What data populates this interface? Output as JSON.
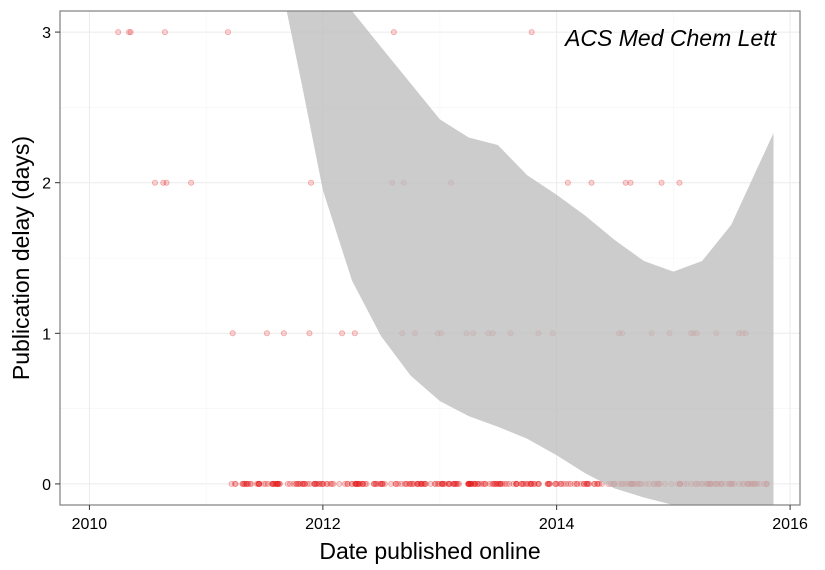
{
  "chart_data": {
    "type": "scatter",
    "title": "",
    "annotation": "ACS Med Chem Lett",
    "xlabel": "Date published online",
    "ylabel": "Publication delay (days)",
    "x_ticks": [
      "2010",
      "2012",
      "2014",
      "2016"
    ],
    "y_ticks": [
      "0",
      "1",
      "2",
      "3"
    ],
    "xlim": [
      "2009-10-01",
      "2016-02-01"
    ],
    "ylim": [
      -0.14,
      3.14
    ],
    "grid": true,
    "colors": {
      "point": "#e41a1c",
      "ribbon": "#bebebe",
      "grid": "#ebebeb",
      "border": "#7f7f7f"
    },
    "points": [
      {
        "x": "2010-04-01",
        "y": 3
      },
      {
        "x": "2010-05-05",
        "y": 3
      },
      {
        "x": "2010-05-10",
        "y": 3
      },
      {
        "x": "2010-08-25",
        "y": 3
      },
      {
        "x": "2011-03-10",
        "y": 3
      },
      {
        "x": "2012-08-10",
        "y": 3
      },
      {
        "x": "2013-10-15",
        "y": 3
      },
      {
        "x": "2010-07-25",
        "y": 2
      },
      {
        "x": "2010-08-20",
        "y": 2
      },
      {
        "x": "2010-08-30",
        "y": 2
      },
      {
        "x": "2010-11-15",
        "y": 2
      },
      {
        "x": "2011-11-25",
        "y": 2
      },
      {
        "x": "2012-08-05",
        "y": 2
      },
      {
        "x": "2012-09-10",
        "y": 2
      },
      {
        "x": "2013-02-05",
        "y": 2
      },
      {
        "x": "2014-02-05",
        "y": 2
      },
      {
        "x": "2014-04-20",
        "y": 2
      },
      {
        "x": "2014-08-05",
        "y": 2
      },
      {
        "x": "2014-08-20",
        "y": 2
      },
      {
        "x": "2014-11-25",
        "y": 2
      },
      {
        "x": "2015-01-20",
        "y": 2
      },
      {
        "x": "2011-03-25",
        "y": 1
      },
      {
        "x": "2011-07-10",
        "y": 1
      },
      {
        "x": "2011-09-01",
        "y": 1
      },
      {
        "x": "2011-11-20",
        "y": 1
      },
      {
        "x": "2012-03-01",
        "y": 1
      },
      {
        "x": "2012-04-10",
        "y": 1
      },
      {
        "x": "2012-09-05",
        "y": 1
      },
      {
        "x": "2012-10-15",
        "y": 1
      },
      {
        "x": "2012-12-25",
        "y": 1
      },
      {
        "x": "2013-01-05",
        "y": 1
      },
      {
        "x": "2013-03-25",
        "y": 1
      },
      {
        "x": "2013-04-15",
        "y": 1
      },
      {
        "x": "2013-06-01",
        "y": 1
      },
      {
        "x": "2013-06-15",
        "y": 1
      },
      {
        "x": "2013-08-10",
        "y": 1
      },
      {
        "x": "2013-11-05",
        "y": 1
      },
      {
        "x": "2013-12-20",
        "y": 1
      },
      {
        "x": "2014-07-15",
        "y": 1
      },
      {
        "x": "2014-07-25",
        "y": 1
      },
      {
        "x": "2014-10-25",
        "y": 1
      },
      {
        "x": "2014-12-20",
        "y": 1
      },
      {
        "x": "2015-02-25",
        "y": 1
      },
      {
        "x": "2015-03-05",
        "y": 1
      },
      {
        "x": "2015-03-15",
        "y": 1
      },
      {
        "x": "2015-05-15",
        "y": 1
      },
      {
        "x": "2015-07-25",
        "y": 1
      },
      {
        "x": "2015-08-05",
        "y": 1
      },
      {
        "x": "2015-08-15",
        "y": 1
      }
    ],
    "zero_delay_dates": {
      "start": "2011-03-20",
      "end": "2015-11-05",
      "count": 320
    },
    "ribbon": {
      "x": [
        "2011-09-10",
        "2011-11-01",
        "2012-01-01",
        "2012-04-01",
        "2012-07-01",
        "2012-10-01",
        "2013-01-01",
        "2013-04-01",
        "2013-07-01",
        "2013-10-01",
        "2014-01-01",
        "2014-04-01",
        "2014-07-01",
        "2014-10-01",
        "2015-01-01",
        "2015-04-01",
        "2015-07-01",
        "2015-11-10"
      ],
      "upper": [
        3.14,
        3.14,
        3.14,
        3.14,
        2.9,
        2.66,
        2.42,
        2.3,
        2.25,
        2.05,
        1.92,
        1.78,
        1.62,
        1.48,
        1.41,
        1.48,
        1.72,
        2.33
      ],
      "lower": [
        3.14,
        2.6,
        1.95,
        1.35,
        0.98,
        0.72,
        0.55,
        0.45,
        0.38,
        0.3,
        0.19,
        0.07,
        -0.03,
        -0.09,
        -0.14,
        -0.14,
        -0.14,
        -0.14
      ]
    }
  }
}
